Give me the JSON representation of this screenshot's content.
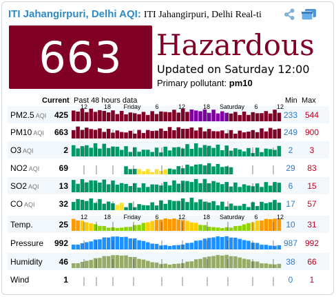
{
  "header": {
    "title": "ITI Jahangirpuri, Delhi AQI",
    "subtitle": "ITI Jahangirpuri, Delhi Real-ti"
  },
  "icons": {
    "share": "share-icon",
    "window": "window-icon"
  },
  "aqi": {
    "value": "663",
    "level": "Hazardous",
    "updated": "Updated on Saturday 12:00",
    "primary_label": "Primary pollutant: ",
    "primary_value": "pm10",
    "box_color": "#800026"
  },
  "table": {
    "col_current": "Current",
    "col_history": "Past 48 hours data",
    "col_min": "Min",
    "col_max": "Max",
    "time_axis": [
      "12",
      "18",
      "Friday",
      "6",
      "12",
      "18",
      "Saturday",
      "6",
      "12"
    ],
    "rows": [
      {
        "name": "PM2.5",
        "unit": "AQI",
        "current": "425",
        "min": "233",
        "max": "544"
      },
      {
        "name": "PM10",
        "unit": "AQI",
        "current": "663",
        "min": "249",
        "max": "900"
      },
      {
        "name": "O3",
        "unit": "AQI",
        "current": "2",
        "min": "2",
        "max": "3"
      },
      {
        "name": "NO2",
        "unit": "AQI",
        "current": "69",
        "min": "29",
        "max": "83"
      },
      {
        "name": "SO2",
        "unit": "AQI",
        "current": "13",
        "min": "6",
        "max": "15"
      },
      {
        "name": "CO",
        "unit": "AQI",
        "current": "32",
        "min": "17",
        "max": "57"
      },
      {
        "name": "Temp.",
        "unit": "",
        "current": "25",
        "min": "10",
        "max": "31"
      },
      {
        "name": "Pressure",
        "unit": "",
        "current": "992",
        "min": "987",
        "max": "992"
      },
      {
        "name": "Humidity",
        "unit": "",
        "current": "46",
        "min": "38",
        "max": "66"
      },
      {
        "name": "Wind",
        "unit": "",
        "current": "1",
        "min": "0",
        "max": "1"
      }
    ]
  },
  "colors": {
    "link": "#2c8ac9",
    "min": "#2c7bc9",
    "max": "#c0001e",
    "hazardous": "#800026",
    "very_unhealthy": "#7e00a0",
    "good": "#009966",
    "moderate": "#ffde33",
    "temp_cool": "#8fd400",
    "temp_warm": "#ffcc00",
    "temp_hot": "#ff9900",
    "pressure": "#1e90ff",
    "humidity": "#99aa66",
    "wind": "#888888"
  }
}
